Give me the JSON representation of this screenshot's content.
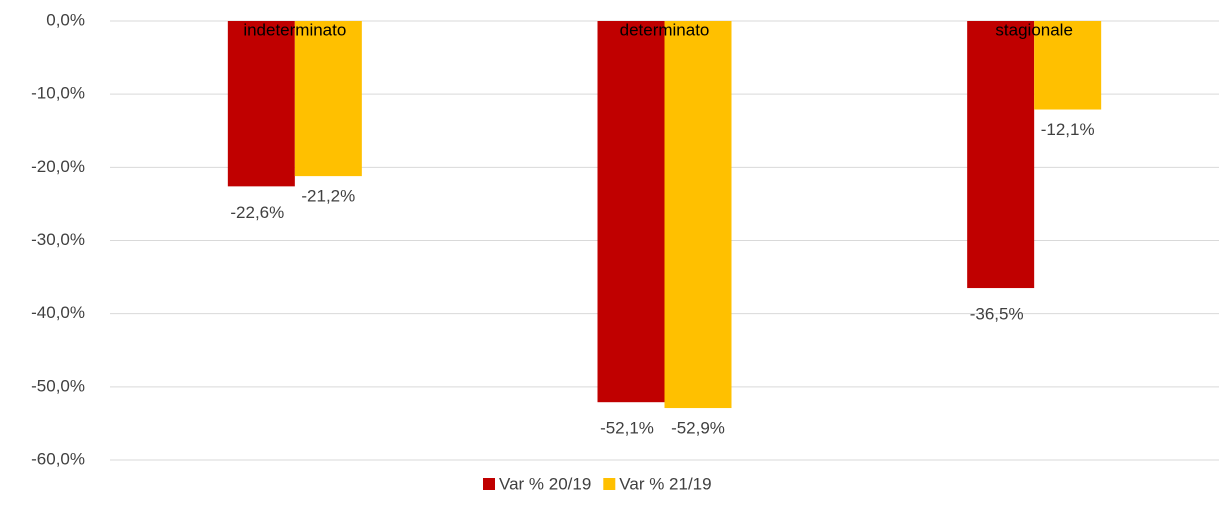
{
  "chart_data": {
    "type": "bar",
    "categories": [
      "indeterminato",
      "determinato",
      "stagionale"
    ],
    "series": [
      {
        "name": "Var % 20/19",
        "color": "#c00000",
        "values": [
          -22.6,
          -52.1,
          -36.5
        ],
        "value_labels": [
          "-22,6%",
          "-52,1%",
          "-36,5%"
        ]
      },
      {
        "name": "Var % 21/19",
        "color": "#ffc000",
        "values": [
          -21.2,
          -52.9,
          -12.1
        ],
        "value_labels": [
          "-21,2%",
          "-52,9%",
          "-12,1%"
        ]
      }
    ],
    "ylim": [
      -60,
      0
    ],
    "yticks": [
      {
        "value": 0,
        "label": "0,0%"
      },
      {
        "value": -10,
        "label": "-10,0%"
      },
      {
        "value": -20,
        "label": "-20,0%"
      },
      {
        "value": -30,
        "label": "-30,0%"
      },
      {
        "value": -40,
        "label": "-40,0%"
      },
      {
        "value": -50,
        "label": "-50,0%"
      },
      {
        "value": -60,
        "label": "-60,0%"
      }
    ],
    "grid": true,
    "legend": "bottom"
  }
}
